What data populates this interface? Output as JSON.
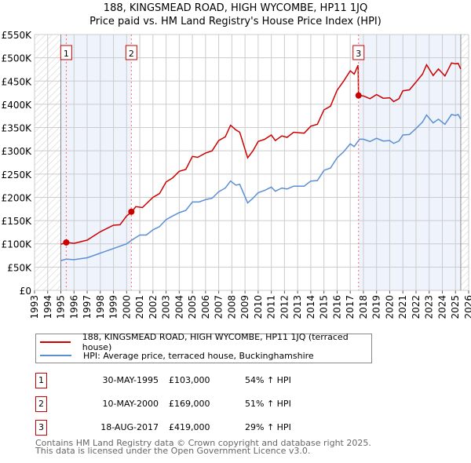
{
  "chart_data": {
    "type": "line",
    "title": "188, KINGSMEAD ROAD, HIGH WYCOMBE, HP11 1JQ",
    "subtitle": "Price paid vs. HM Land Registry's House Price Index (HPI)",
    "xlim": [
      1993,
      2026
    ],
    "ylim": [
      0,
      550000
    ],
    "x_ticks": [
      "1993",
      "1994",
      "1995",
      "1996",
      "1997",
      "1998",
      "1999",
      "2000",
      "2001",
      "2002",
      "2003",
      "2004",
      "2005",
      "2006",
      "2007",
      "2008",
      "2009",
      "2010",
      "2011",
      "2012",
      "2013",
      "2014",
      "2015",
      "2016",
      "2017",
      "2018",
      "2019",
      "2020",
      "2021",
      "2022",
      "2023",
      "2024",
      "2025",
      "2026"
    ],
    "y_ticks": [
      {
        "v": 0,
        "label": "£0"
      },
      {
        "v": 50000,
        "label": "£50K"
      },
      {
        "v": 100000,
        "label": "£100K"
      },
      {
        "v": 150000,
        "label": "£150K"
      },
      {
        "v": 200000,
        "label": "£200K"
      },
      {
        "v": 250000,
        "label": "£250K"
      },
      {
        "v": 300000,
        "label": "£300K"
      },
      {
        "v": 350000,
        "label": "£350K"
      },
      {
        "v": 400000,
        "label": "£400K"
      },
      {
        "v": 450000,
        "label": "£450K"
      },
      {
        "v": 500000,
        "label": "£500K"
      },
      {
        "v": 550000,
        "label": "£550K"
      }
    ],
    "grid": true,
    "legend_placement": "below",
    "series": [
      {
        "name": "188, KINGSMEAD ROAD, HIGH WYCOMBE, HP11 1JQ (terraced house)",
        "color": "#cc0000",
        "x": [
          1995.0,
          1995.4,
          1996,
          1997,
          1998,
          1999,
          1999.5,
          2000,
          2000.4,
          2000.7,
          2001.2,
          2002,
          2002.5,
          2003,
          2003.5,
          2004,
          2004.5,
          2005,
          2005.4,
          2006,
          2006.5,
          2007,
          2007.5,
          2007.9,
          2008.3,
          2008.6,
          2009.2,
          2009.6,
          2010,
          2010.5,
          2011,
          2011.3,
          2011.8,
          2012.2,
          2012.7,
          2013.5,
          2014,
          2014.5,
          2015,
          2015.5,
          2016,
          2016.5,
          2017,
          2017.3,
          2017.6,
          2017.63,
          2018,
          2018.5,
          2019,
          2019.5,
          2020,
          2020.3,
          2020.7,
          2021,
          2021.5,
          2022,
          2022.5,
          2022.8,
          2023.3,
          2023.7,
          2024.2,
          2024.7,
          2025.0,
          2025.2,
          2025.4
        ],
        "y": [
          99000,
          103000,
          101000,
          108000,
          126000,
          140000,
          141000,
          160000,
          169000,
          180000,
          178000,
          200000,
          208000,
          233000,
          242000,
          256000,
          260000,
          288000,
          286000,
          295000,
          300000,
          322000,
          330000,
          355000,
          345000,
          340000,
          285000,
          300000,
          320000,
          325000,
          334000,
          322000,
          332000,
          329000,
          340000,
          338000,
          353000,
          357000,
          388000,
          396000,
          430000,
          450000,
          472000,
          465000,
          484000,
          419000,
          418000,
          412000,
          421000,
          413000,
          414000,
          406000,
          412000,
          429000,
          431000,
          448000,
          465000,
          485000,
          462000,
          476000,
          461000,
          489000,
          487000,
          488000,
          476000
        ]
      },
      {
        "name": "HPI: Average price, terraced house, Buckinghamshire",
        "color": "#5b8fd4",
        "x": [
          1995.0,
          1995.4,
          1996,
          1997,
          1998,
          1999,
          2000,
          2000.5,
          2001,
          2001.5,
          2002,
          2002.5,
          2003,
          2003.5,
          2004,
          2004.5,
          2005,
          2005.5,
          2006,
          2006.5,
          2007,
          2007.5,
          2007.9,
          2008.3,
          2008.6,
          2009.2,
          2009.6,
          2010,
          2010.5,
          2011,
          2011.3,
          2011.8,
          2012.2,
          2012.7,
          2013.5,
          2014,
          2014.5,
          2015,
          2015.5,
          2016,
          2016.5,
          2017,
          2017.3,
          2017.7,
          2018,
          2018.5,
          2019,
          2019.5,
          2020,
          2020.3,
          2020.7,
          2021,
          2021.5,
          2022,
          2022.5,
          2022.8,
          2023.3,
          2023.7,
          2024.2,
          2024.7,
          2025.0,
          2025.2,
          2025.4
        ],
        "y": [
          64000,
          67000,
          66000,
          70000,
          80000,
          90000,
          100000,
          110000,
          119000,
          119000,
          130000,
          137000,
          152000,
          160000,
          167000,
          172000,
          190000,
          190000,
          195000,
          198000,
          212000,
          220000,
          235000,
          226000,
          228000,
          188000,
          198000,
          210000,
          215000,
          222000,
          213000,
          220000,
          218000,
          224000,
          224000,
          235000,
          236000,
          258000,
          263000,
          285000,
          298000,
          315000,
          309000,
          325000,
          325000,
          320000,
          327000,
          321000,
          322000,
          316000,
          321000,
          334000,
          335000,
          348000,
          362000,
          377000,
          360000,
          368000,
          357000,
          378000,
          376000,
          378000,
          368000
        ]
      }
    ],
    "sales": [
      {
        "label": "1",
        "x": 1995.41,
        "price": 103000,
        "date": "30-MAY-1995",
        "price_text": "£103,000",
        "hpi": "54% ↑ HPI"
      },
      {
        "label": "2",
        "x": 2000.36,
        "price": 169000,
        "date": "10-MAY-2000",
        "price_text": "£169,000",
        "hpi": "51% ↑ HPI"
      },
      {
        "label": "3",
        "x": 2017.63,
        "price": 419000,
        "date": "18-AUG-2017",
        "price_text": "£419,000",
        "hpi": "29% ↑ HPI"
      }
    ],
    "data_range": [
      1995.0,
      2025.4
    ]
  },
  "footer": {
    "line1": "Contains HM Land Registry data © Crown copyright and database right 2025.",
    "line2": "This data is licensed under the Open Government Licence v3.0."
  }
}
